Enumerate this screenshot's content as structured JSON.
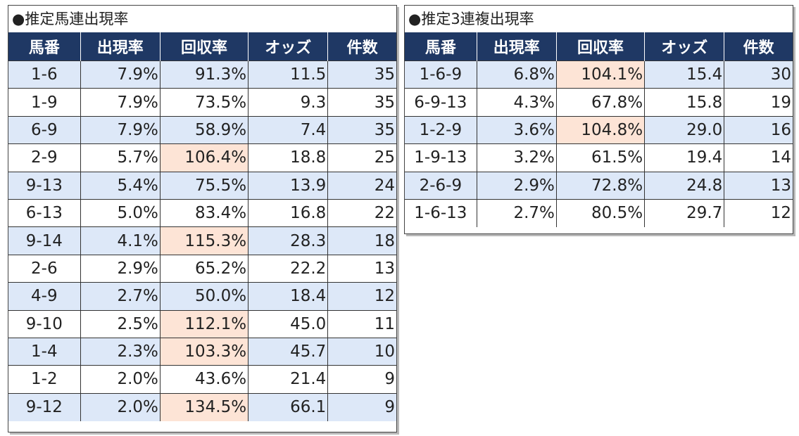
{
  "colors": {
    "header_bg": "#1f3864",
    "header_text": "#ffffff",
    "row_odd": "#dde8f8",
    "row_even": "#ffffff",
    "highlight": "#fde4d6"
  },
  "umaren": {
    "title": "●推定馬連出現率",
    "headers": [
      "馬番",
      "出現率",
      "回収率",
      "オッズ",
      "件数"
    ],
    "rows": [
      {
        "num": "1-6",
        "rate": "7.9%",
        "return": "91.3%",
        "odds": "11.5",
        "count": "35",
        "highlight": false
      },
      {
        "num": "1-9",
        "rate": "7.9%",
        "return": "73.5%",
        "odds": "9.3",
        "count": "35",
        "highlight": false
      },
      {
        "num": "6-9",
        "rate": "7.9%",
        "return": "58.9%",
        "odds": "7.4",
        "count": "35",
        "highlight": false
      },
      {
        "num": "2-9",
        "rate": "5.7%",
        "return": "106.4%",
        "odds": "18.8",
        "count": "25",
        "highlight": true
      },
      {
        "num": "9-13",
        "rate": "5.4%",
        "return": "75.5%",
        "odds": "13.9",
        "count": "24",
        "highlight": false
      },
      {
        "num": "6-13",
        "rate": "5.0%",
        "return": "83.4%",
        "odds": "16.8",
        "count": "22",
        "highlight": false
      },
      {
        "num": "9-14",
        "rate": "4.1%",
        "return": "115.3%",
        "odds": "28.3",
        "count": "18",
        "highlight": true
      },
      {
        "num": "2-6",
        "rate": "2.9%",
        "return": "65.2%",
        "odds": "22.2",
        "count": "13",
        "highlight": false
      },
      {
        "num": "4-9",
        "rate": "2.7%",
        "return": "50.0%",
        "odds": "18.4",
        "count": "12",
        "highlight": false
      },
      {
        "num": "9-10",
        "rate": "2.5%",
        "return": "112.1%",
        "odds": "45.0",
        "count": "11",
        "highlight": true
      },
      {
        "num": "1-4",
        "rate": "2.3%",
        "return": "103.3%",
        "odds": "45.7",
        "count": "10",
        "highlight": true
      },
      {
        "num": "1-2",
        "rate": "2.0%",
        "return": "43.6%",
        "odds": "21.4",
        "count": "9",
        "highlight": false
      },
      {
        "num": "9-12",
        "rate": "2.0%",
        "return": "134.5%",
        "odds": "66.1",
        "count": "9",
        "highlight": true
      }
    ]
  },
  "sanrenpuku": {
    "title": "●推定3連複出現率",
    "headers": [
      "馬番",
      "出現率",
      "回収率",
      "オッズ",
      "件数"
    ],
    "rows": [
      {
        "num": "1-6-9",
        "rate": "6.8%",
        "return": "104.1%",
        "odds": "15.4",
        "count": "30",
        "highlight": true
      },
      {
        "num": "6-9-13",
        "rate": "4.3%",
        "return": "67.8%",
        "odds": "15.8",
        "count": "19",
        "highlight": false
      },
      {
        "num": "1-2-9",
        "rate": "3.6%",
        "return": "104.8%",
        "odds": "29.0",
        "count": "16",
        "highlight": true
      },
      {
        "num": "1-9-13",
        "rate": "3.2%",
        "return": "61.5%",
        "odds": "19.4",
        "count": "14",
        "highlight": false
      },
      {
        "num": "2-6-9",
        "rate": "2.9%",
        "return": "72.8%",
        "odds": "24.8",
        "count": "13",
        "highlight": false
      },
      {
        "num": "1-6-13",
        "rate": "2.7%",
        "return": "80.5%",
        "odds": "29.7",
        "count": "12",
        "highlight": false
      }
    ]
  }
}
